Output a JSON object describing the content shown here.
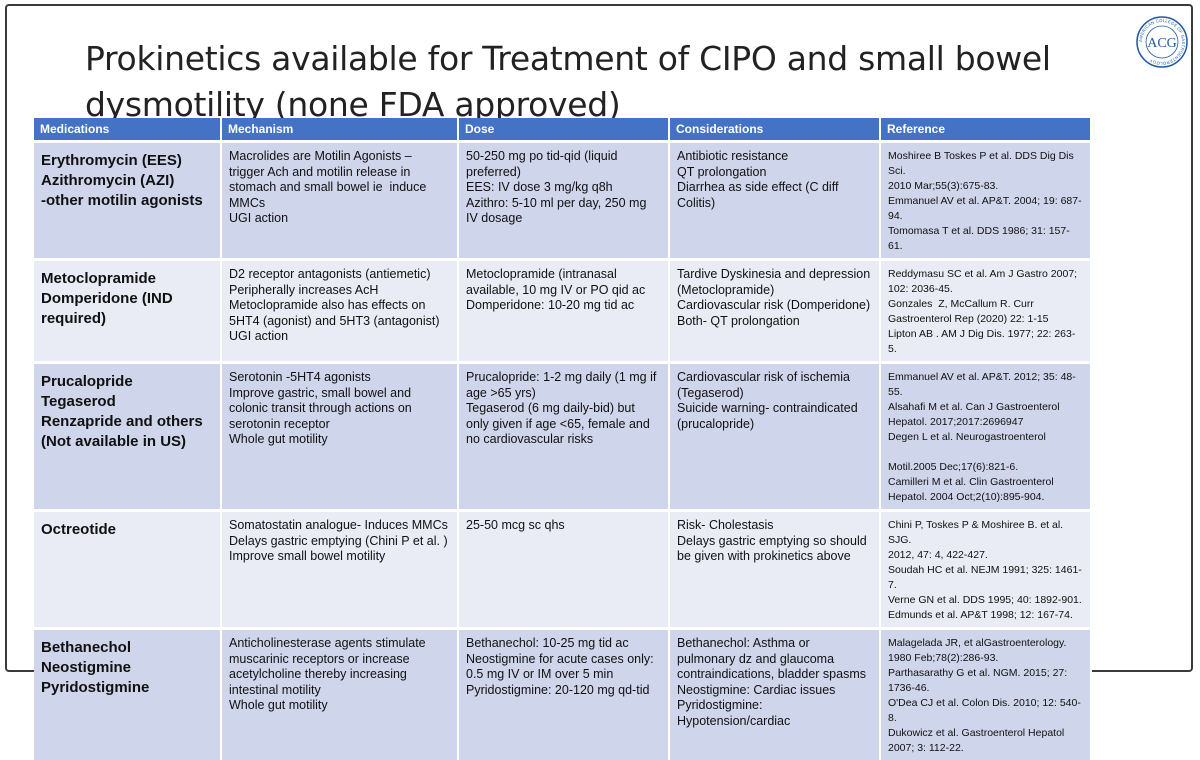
{
  "title_line1": "Prokinetics available for Treatment of CIPO and small bowel",
  "title_line2": "dysmotility (none FDA approved)",
  "logo": {
    "text": "ACG",
    "ring_text": "AMERICAN COLLEGE OF GASTROENTEROLOGY",
    "color": "#1f5aa6"
  },
  "table": {
    "headers": [
      "Medications",
      "Mechanism",
      "Dose",
      "Considerations",
      "Reference"
    ],
    "rows": [
      {
        "medications": [
          "Erythromycin (EES)",
          "Azithromycin (AZI)",
          "-other motilin agonists"
        ],
        "mechanism": [
          "Macrolides are Motilin Agonists –",
          "trigger Ach and motilin release in",
          "stomach and small bowel ie  induce",
          "MMCs",
          "UGI action"
        ],
        "dose": [
          "50-250 mg po tid-qid (liquid",
          "preferred)",
          "EES: IV dose 3 mg/kg q8h",
          "Azithro: 5-10 ml per day, 250 mg",
          "IV dosage"
        ],
        "considerations": [
          "Antibiotic resistance",
          "QT prolongation",
          "Diarrhea as side effect (C diff",
          "Colitis)"
        ],
        "reference": [
          "Moshiree B Toskes P et al. DDS Dig Dis Sci.",
          "2010 Mar;55(3):675-83.",
          "Emmanuel AV et al. AP&T. 2004; 19: 687-",
          "94.",
          "Tomomasa T et al. DDS 1986; 31: 157-61."
        ]
      },
      {
        "medications": [
          "Metoclopramide",
          "Domperidone (IND",
          "required)"
        ],
        "mechanism": [
          "D2 receptor antagonists (antiemetic)",
          "Peripherally increases AcH",
          "Metoclopramide also has effects on",
          "5HT4 (agonist) and 5HT3 (antagonist)",
          "UGI action"
        ],
        "dose": [
          "Metoclopramide (intranasal",
          "available, 10 mg IV or PO qid ac",
          "Domperidone: 10-20 mg tid ac"
        ],
        "considerations": [
          "Tardive Dyskinesia and depression",
          "(Metoclopramide)",
          "Cardiovascular risk (Domperidone)",
          "Both- QT prolongation"
        ],
        "reference": [
          "Reddymasu SC et al. Am J Gastro 2007;",
          "102: 2036-45.",
          "Gonzales  Z, McCallum R. Curr",
          "Gastroenterol Rep (2020) 22: 1-15",
          "Lipton AB . AM J Dig Dis. 1977; 22: 263-5."
        ]
      },
      {
        "medications": [
          "Prucalopride",
          "Tegaserod",
          "Renzapride and others",
          "(Not available in US)"
        ],
        "mechanism": [
          "Serotonin -5HT4 agonists",
          "Improve gastric, small bowel and",
          "colonic transit through actions on",
          "serotonin receptor",
          "Whole gut motility"
        ],
        "dose": [
          "Prucalopride: 1-2 mg daily (1 mg if",
          "age >65 yrs)",
          "Tegaserod (6 mg daily-bid) but",
          "only given if age <65, female and",
          "no cardiovascular risks"
        ],
        "considerations": [
          "Cardiovascular risk of ischemia",
          "(Tegaserod)",
          "Suicide warning- contraindicated",
          "(prucalopride)"
        ],
        "reference": [
          "Emmanuel AV et al. AP&T. 2012; 35: 48-",
          "55.",
          "Alsahafi M et al. Can J Gastroenterol",
          "Hepatol. 2017;2017:2696947",
          "Degen L et al. Neurogastroenterol",
          "",
          "Motil.2005 Dec;17(6):821-6.",
          "Camilleri M et al. Clin Gastroenterol",
          "Hepatol. 2004 Oct;2(10):895-904."
        ]
      },
      {
        "medications": [
          "Octreotide"
        ],
        "mechanism": [
          "Somatostatin analogue- Induces MMCs",
          "Delays gastric emptying (Chini P et al. )",
          "Improve small bowel motility"
        ],
        "dose": [
          "25-50 mcg sc qhs"
        ],
        "considerations": [
          "Risk- Cholestasis",
          "Delays gastric emptying so should",
          "be given with prokinetics above"
        ],
        "reference": [
          "Chini P, Toskes P & Moshiree B. et al. SJG.",
          "2012, 47: 4, 422-427.",
          "Soudah HC et al. NEJM 1991; 325: 1461-7.",
          "Verne GN et al. DDS 1995; 40: 1892-901.",
          "Edmunds et al. AP&T 1998; 12: 167-74."
        ]
      },
      {
        "medications": [
          "Bethanechol",
          "Neostigmine",
          "Pyridostigmine"
        ],
        "mechanism": [
          "Anticholinesterase agents stimulate",
          "muscarinic receptors or increase",
          "acetylcholine thereby increasing",
          "intestinal motility",
          "Whole gut motility"
        ],
        "dose": [
          "Bethanechol: 10-25 mg tid ac",
          "Neostigmine for acute cases only:",
          "0.5 mg IV or IM over 5 min",
          "Pyridostigmine: 20-120 mg qd-tid"
        ],
        "considerations": [
          "Bethanechol: Asthma or",
          "pulmonary dz and glaucoma",
          "contraindications, bladder spasms",
          "Neostigmine: Cardiac issues",
          "Pyridostigmine:",
          "Hypotension/cardiac"
        ],
        "reference": [
          "Malagelada JR, et alGastroenterology.",
          "1980 Feb;78(2):286-93.",
          "Parthasarathy G et al. NGM. 2015; 27:",
          "1736-46.",
          "O'Dea CJ et al. Colon Dis. 2010; 12: 540-8.",
          "Dukowicz et al. Gastroenterol Hepatol",
          "2007; 3: 112-22."
        ]
      }
    ]
  }
}
